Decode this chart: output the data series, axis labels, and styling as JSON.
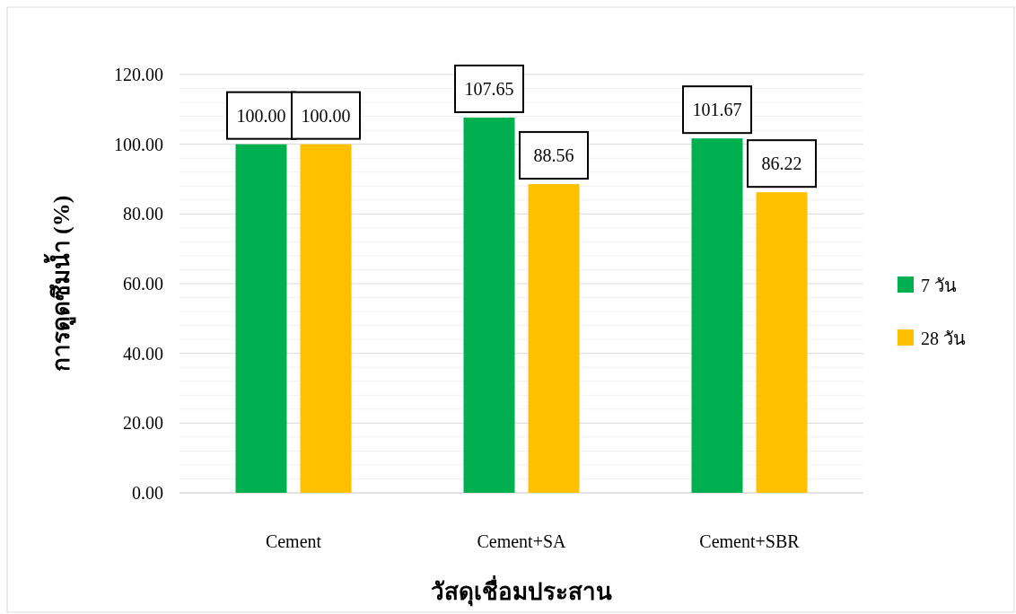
{
  "chart_data": {
    "type": "bar",
    "xlabel": "วัสดุเชื่อมประสาน",
    "ylabel": "การดูดซึมน้ำ (%)",
    "categories": [
      "Cement",
      "Cement+SA",
      "Cement+SBR"
    ],
    "series": [
      {
        "name": "7 วัน",
        "color": "#00b050",
        "values": [
          100.0,
          107.65,
          101.67
        ],
        "value_labels": [
          "100.00",
          "107.65",
          "101.67"
        ]
      },
      {
        "name": "28 วัน",
        "color": "#ffc000",
        "values": [
          100.0,
          88.56,
          86.22
        ],
        "value_labels": [
          "100.00",
          "88.56",
          "86.22"
        ]
      }
    ],
    "ylim": [
      0,
      120
    ],
    "yticks": [
      {
        "value": 0,
        "label": "0.00"
      },
      {
        "value": 20,
        "label": "20.00"
      },
      {
        "value": 40,
        "label": "40.00"
      },
      {
        "value": 60,
        "label": "60.00"
      },
      {
        "value": 80,
        "label": "80.00"
      },
      {
        "value": 100,
        "label": "100.00"
      },
      {
        "value": 120,
        "label": "120.00"
      }
    ],
    "grid": "y",
    "legend": "right"
  }
}
